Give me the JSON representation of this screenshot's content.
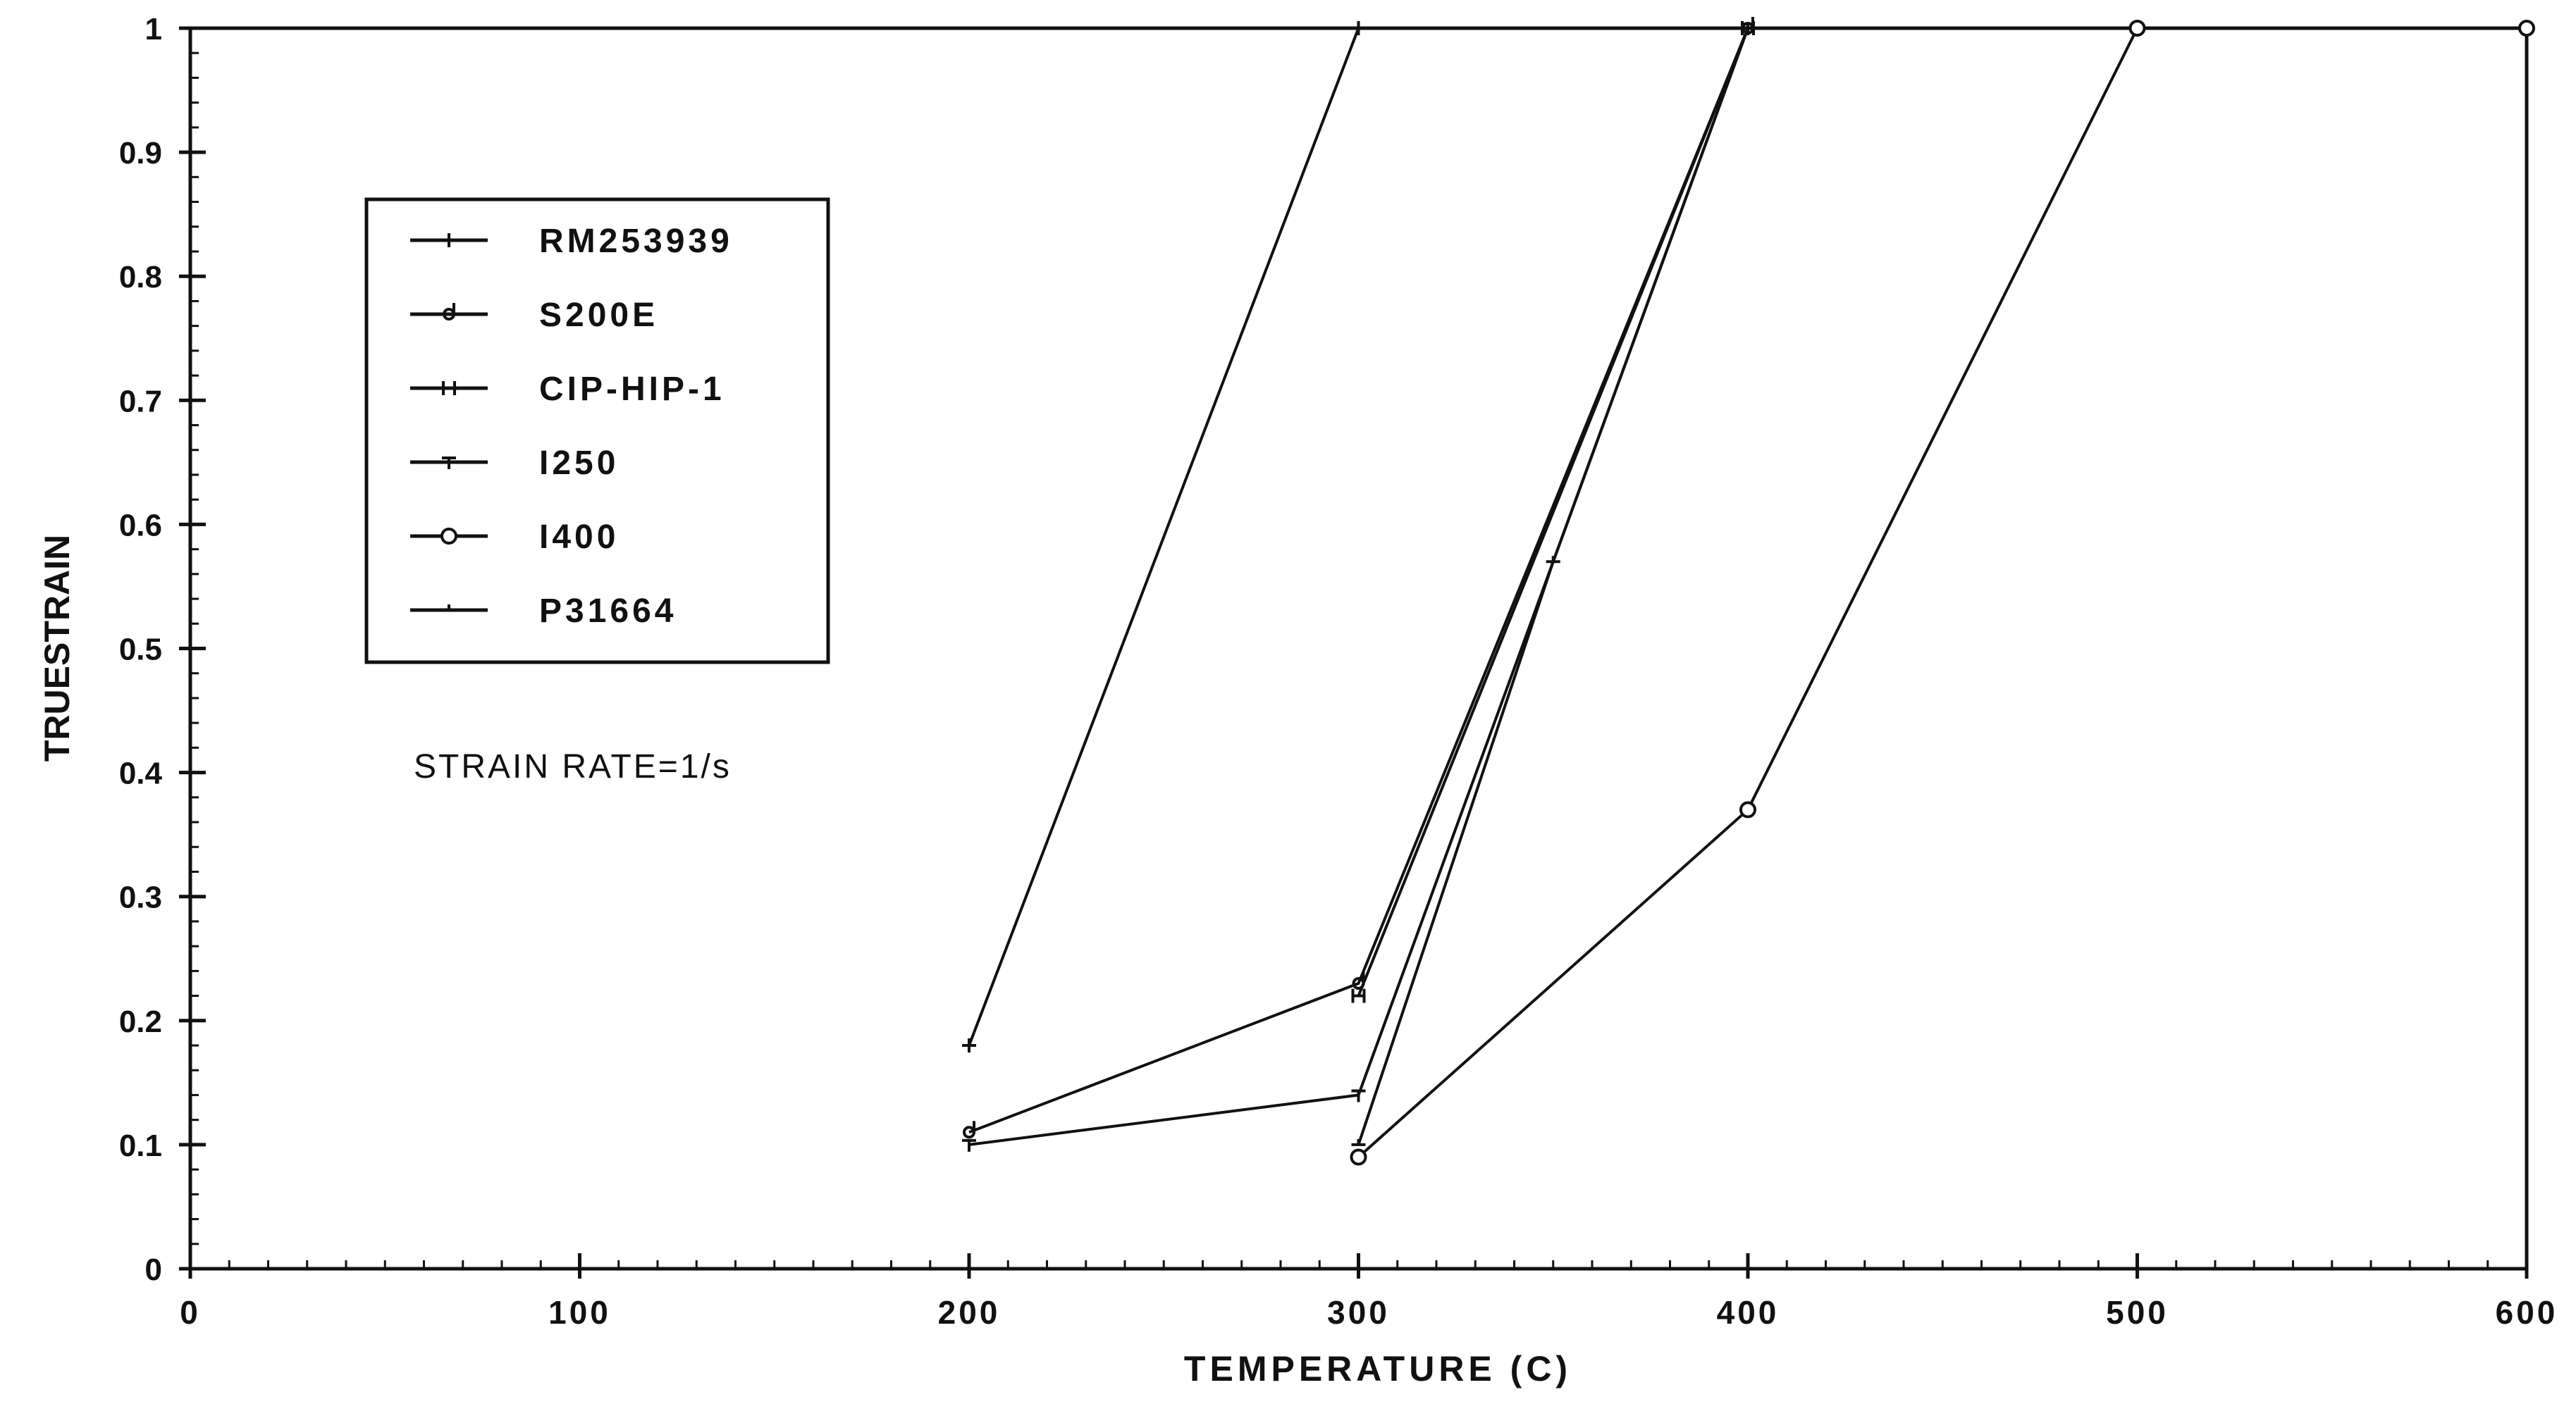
{
  "chart_data": {
    "type": "line",
    "title": "",
    "xlabel": "TEMPERATURE (C)",
    "ylabel": "TRUESTRAIN",
    "xlim": [
      0,
      600
    ],
    "ylim": [
      0,
      1
    ],
    "x_ticks": [
      "0",
      "100",
      "200",
      "300",
      "400",
      "500",
      "600"
    ],
    "y_ticks": [
      "0",
      "0.1",
      "0.2",
      "0.3",
      "0.4",
      "0.5",
      "0.6",
      "0.7",
      "0.8",
      "0.9",
      "1"
    ],
    "grid": false,
    "legend_position": "top-left",
    "annotation": "STRAIN RATE=1/s",
    "series": [
      {
        "name": "RM253939",
        "marker": "+",
        "x": [
          200,
          300
        ],
        "y": [
          0.18,
          1.0
        ]
      },
      {
        "name": "S200E",
        "marker": "d",
        "x": [
          200,
          300,
          400
        ],
        "y": [
          0.11,
          0.23,
          1.0
        ]
      },
      {
        "name": "CIP-HIP-1",
        "marker": "H",
        "x": [
          300,
          400
        ],
        "y": [
          0.22,
          1.0
        ]
      },
      {
        "name": "I250",
        "marker": "T",
        "x": [
          200,
          300,
          400
        ],
        "y": [
          0.1,
          0.14,
          1.0
        ]
      },
      {
        "name": "I400",
        "marker": "o",
        "x": [
          300,
          400,
          500,
          600
        ],
        "y": [
          0.09,
          0.37,
          1.0,
          1.0
        ]
      },
      {
        "name": "P31664",
        "marker": "-",
        "x": [
          300,
          350,
          400
        ],
        "y": [
          0.1,
          0.57,
          1.0
        ]
      }
    ]
  }
}
